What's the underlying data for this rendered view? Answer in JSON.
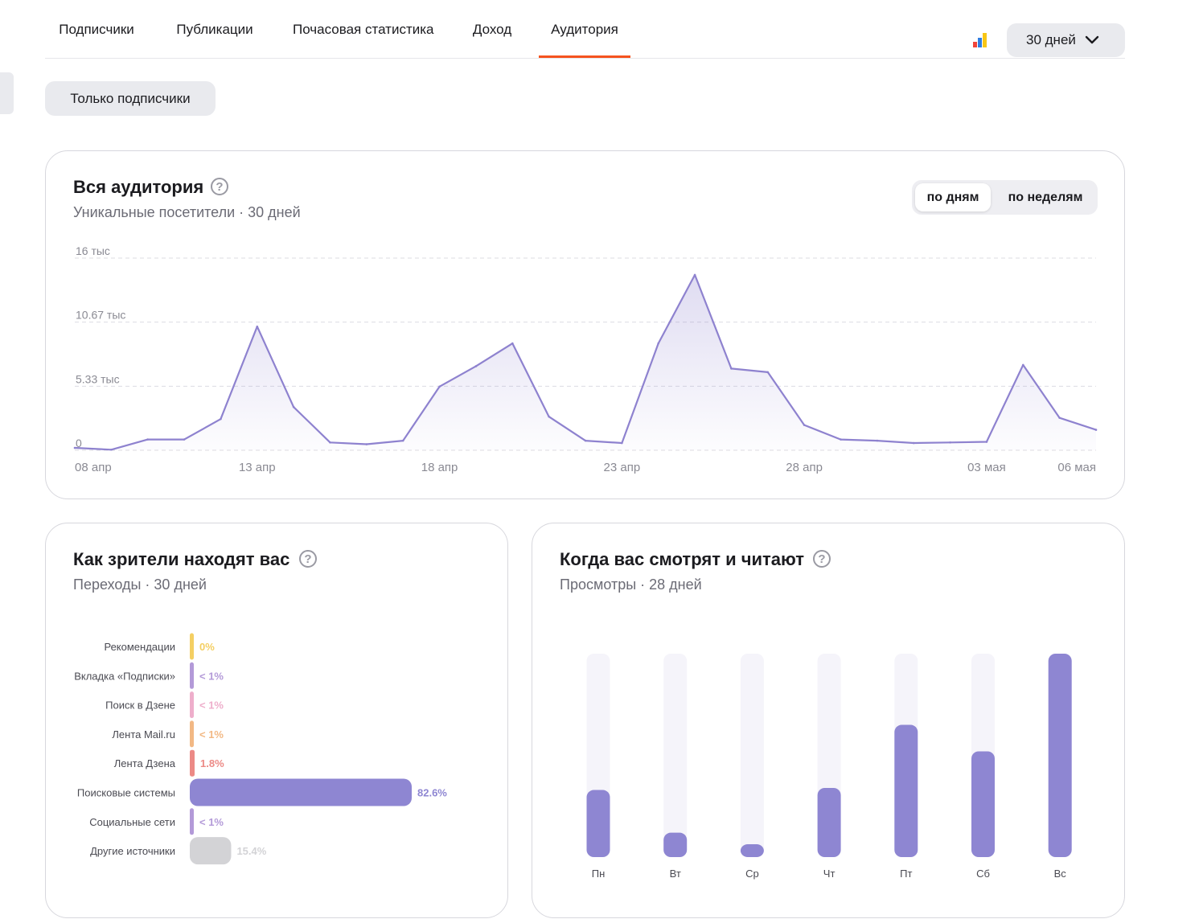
{
  "tabs": [
    {
      "label": "Подписчики",
      "active": false
    },
    {
      "label": "Публикации",
      "active": false
    },
    {
      "label": "Почасовая статистика",
      "active": false
    },
    {
      "label": "Доход",
      "active": false
    },
    {
      "label": "Аудитория",
      "active": true
    }
  ],
  "period": {
    "label": "30 дней",
    "icon": "chevron-down-icon"
  },
  "brand_icon": "bar-chart-logo-icon",
  "filter": {
    "label": "Только подписчики"
  },
  "audience": {
    "title": "Вся аудитория",
    "subtitle": "Уникальные посетители · 30 дней",
    "toggle": {
      "days": "по дням",
      "weeks": "по неделям",
      "active": "days"
    }
  },
  "sources": {
    "title": "Как зрители находят вас",
    "subtitle": "Переходы · 30 дней"
  },
  "when": {
    "title": "Когда вас смотрят и читают",
    "subtitle": "Просмотры · 28 дней"
  },
  "chart_data": [
    {
      "type": "area",
      "color": "#8e82cf",
      "ylim": [
        0,
        16000
      ],
      "y_ticks": [
        {
          "value": 0,
          "label": "0"
        },
        {
          "value": 5330,
          "label": "5.33 тыс"
        },
        {
          "value": 10670,
          "label": "10.67 тыс"
        },
        {
          "value": 16000,
          "label": "16 тыс"
        }
      ],
      "x_ticks": [
        {
          "index": 0,
          "label": "08 апр"
        },
        {
          "index": 5,
          "label": "13 апр"
        },
        {
          "index": 10,
          "label": "18 апр"
        },
        {
          "index": 15,
          "label": "23 апр"
        },
        {
          "index": 20,
          "label": "28 апр"
        },
        {
          "index": 25,
          "label": "03 мая"
        },
        {
          "index": 28,
          "label": "06 мая"
        }
      ],
      "values": [
        200,
        50,
        900,
        900,
        2600,
        10300,
        3600,
        650,
        500,
        800,
        5300,
        7000,
        8900,
        2800,
        800,
        600,
        8900,
        14600,
        6800,
        6500,
        2100,
        900,
        800,
        600,
        650,
        700,
        7100,
        2700,
        1700
      ],
      "grid": true
    },
    {
      "type": "bar",
      "orientation": "horizontal",
      "categories": [
        "Рекомендации",
        "Вкладка «Подписки»",
        "Поиск в Дзене",
        "Лента Mail.ru",
        "Лента Дзена",
        "Поисковые системы",
        "Социальные сети",
        "Другие источники"
      ],
      "values": [
        0,
        0.5,
        0.5,
        0.5,
        1.8,
        82.6,
        0.5,
        15.4
      ],
      "value_labels": [
        "0%",
        "< 1%",
        "< 1%",
        "< 1%",
        "1.8%",
        "82.6%",
        "< 1%",
        "15.4%"
      ],
      "colors": [
        "#f4cf63",
        "#b39ad8",
        "#eeaecb",
        "#f2b884",
        "#ec8a86",
        "#8e86d2",
        "#b39ad8",
        "#d3d3d6"
      ],
      "label_colors": [
        "#f4cf63",
        "#b39ad8",
        "#eeaecb",
        "#f2b884",
        "#ec8a86",
        "#8e86d2",
        "#b39ad8",
        "#d3d3d6"
      ],
      "xlim": [
        0,
        82.6
      ]
    },
    {
      "type": "bar",
      "orientation": "vertical",
      "categories": [
        "Пн",
        "Вт",
        "Ср",
        "Чт",
        "Пт",
        "Сб",
        "Вс"
      ],
      "values": [
        33,
        12,
        6,
        34,
        65,
        52,
        100
      ],
      "ylim": [
        0,
        100
      ],
      "color": "#8e86d2",
      "track_color": "#f5f4fa"
    }
  ]
}
